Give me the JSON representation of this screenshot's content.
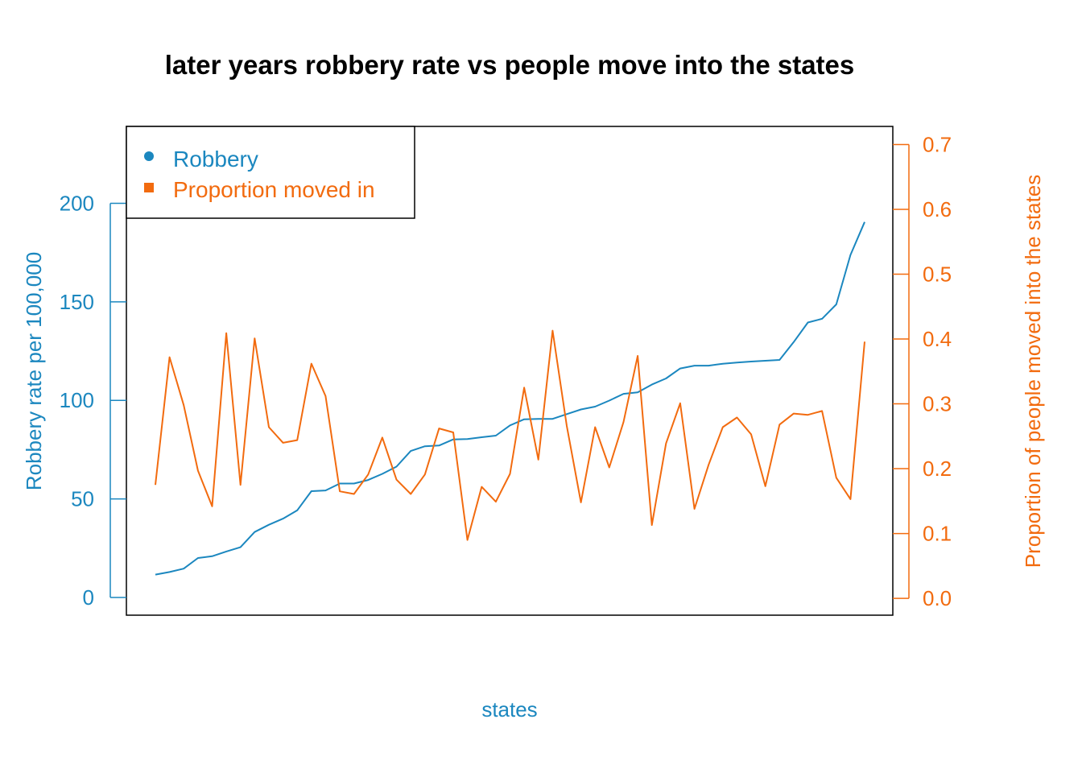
{
  "chart_data": {
    "type": "line",
    "title": "later years robbery rate vs people move into the states",
    "xlabel": "states",
    "ylabel_left": "Robbery rate per 100,000",
    "ylabel_right": "Proportion of people moved into the states",
    "ylim_left": [
      -9,
      239
    ],
    "ylim_right": [
      -0.026,
      0.728
    ],
    "yticks_left": [
      "0",
      "50",
      "100",
      "150",
      "200"
    ],
    "yticks_right": [
      "0.0",
      "0.1",
      "0.2",
      "0.3",
      "0.4",
      "0.5",
      "0.6",
      "0.7"
    ],
    "legend_position": "top-left",
    "colors": {
      "robbery": "#1b87bf",
      "moved": "#f26b0f"
    },
    "series": [
      {
        "name": "Robbery",
        "values": [
          11.6,
          12.9,
          14.6,
          20.0,
          20.9,
          23.3,
          25.5,
          33.2,
          36.9,
          40.0,
          44.2,
          53.9,
          54.3,
          57.8,
          57.8,
          59.6,
          62.7,
          66.4,
          74.3,
          76.7,
          77.1,
          80.2,
          80.4,
          81.3,
          82.1,
          87.3,
          90.4,
          90.6,
          90.6,
          93.0,
          95.4,
          96.8,
          99.9,
          103.3,
          104.1,
          108.0,
          111.1,
          116.2,
          117.6,
          117.6,
          118.6,
          119.2,
          119.7,
          120.1,
          120.5,
          129.6,
          139.5,
          141.4,
          148.7,
          173.8,
          190.5
        ]
      },
      {
        "name": "Proportion moved in",
        "values": [
          0.175,
          0.372,
          0.298,
          0.197,
          0.142,
          0.409,
          0.175,
          0.401,
          0.264,
          0.24,
          0.244,
          0.362,
          0.312,
          0.165,
          0.161,
          0.191,
          0.248,
          0.183,
          0.161,
          0.191,
          0.262,
          0.256,
          0.09,
          0.172,
          0.149,
          0.192,
          0.325,
          0.214,
          0.413,
          0.266,
          0.148,
          0.264,
          0.202,
          0.272,
          0.374,
          0.113,
          0.239,
          0.301,
          0.138,
          0.206,
          0.264,
          0.279,
          0.253,
          0.173,
          0.268,
          0.285,
          0.283,
          0.289,
          0.186,
          0.153,
          0.396
        ]
      }
    ]
  }
}
